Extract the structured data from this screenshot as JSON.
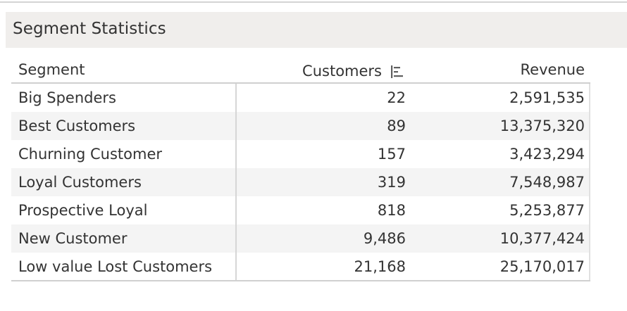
{
  "title": "Segment Statistics",
  "table": {
    "columns": {
      "segment": "Segment",
      "customers": "Customers",
      "revenue": "Revenue"
    },
    "sorted_column": "customers",
    "sort_direction": "ascending",
    "rows": [
      {
        "segment": "Big Spenders",
        "customers": "22",
        "revenue": "2,591,535"
      },
      {
        "segment": "Best Customers",
        "customers": "89",
        "revenue": "13,375,320"
      },
      {
        "segment": "Churning Customer",
        "customers": "157",
        "revenue": "3,423,294"
      },
      {
        "segment": "Loyal Customers",
        "customers": "319",
        "revenue": "7,548,987"
      },
      {
        "segment": "Prospective Loyal",
        "customers": "818",
        "revenue": "5,253,877"
      },
      {
        "segment": "New Customer",
        "customers": "9,486",
        "revenue": "10,377,424"
      },
      {
        "segment": "Low value Lost Customers",
        "customers": "21,168",
        "revenue": "25,170,017"
      }
    ]
  },
  "colors": {
    "title_background": "#f0eeec",
    "band_background": "#f4f4f4",
    "text": "#333333"
  },
  "icons": {
    "sort": "sort-ascending-bars-icon"
  }
}
